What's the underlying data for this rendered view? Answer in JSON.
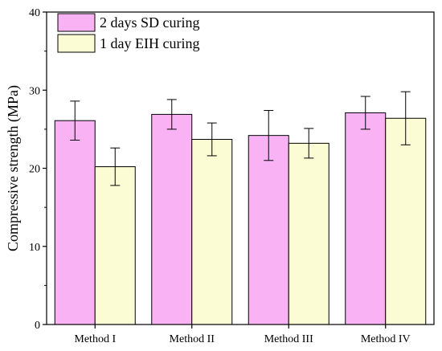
{
  "chart_data": {
    "type": "bar",
    "title": "",
    "xlabel": "",
    "ylabel": "Compressive strength (MPa)",
    "ylim": [
      0,
      40
    ],
    "yticks": [
      0,
      10,
      20,
      30,
      40
    ],
    "categories": [
      "Method I",
      "Method II",
      "Method III",
      "Method IV"
    ],
    "series": [
      {
        "name": "2 days SD curing",
        "color": "#f9b3f5",
        "values": [
          26.1,
          26.9,
          24.2,
          27.1
        ],
        "errors": [
          2.5,
          1.9,
          3.2,
          2.1
        ]
      },
      {
        "name": "1 day EIH curing",
        "color": "#fbfbd4",
        "values": [
          20.2,
          23.7,
          23.2,
          26.4
        ],
        "errors": [
          2.4,
          2.1,
          1.9,
          3.4
        ]
      }
    ],
    "legend_position": "top-left",
    "grid": false
  }
}
